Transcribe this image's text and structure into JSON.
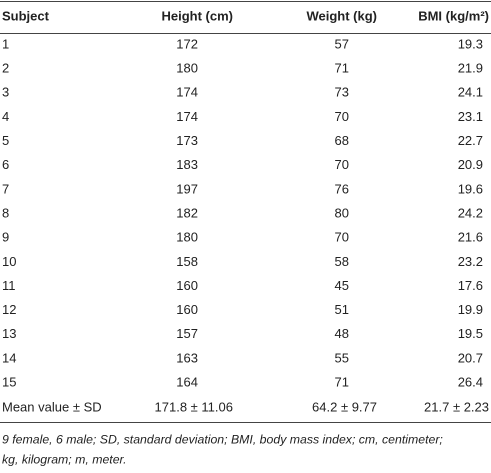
{
  "table": {
    "header": [
      "Subject",
      "Height (cm)",
      "Weight (kg)",
      "BMI (kg/m²)"
    ],
    "rows": [
      [
        1,
        172,
        57,
        19.3
      ],
      [
        2,
        180,
        71,
        21.9
      ],
      [
        3,
        174,
        73,
        24.1
      ],
      [
        4,
        174,
        70,
        23.1
      ],
      [
        5,
        173,
        68,
        22.7
      ],
      [
        6,
        183,
        70,
        20.9
      ],
      [
        7,
        197,
        76,
        19.6
      ],
      [
        8,
        182,
        80,
        24.2
      ],
      [
        9,
        180,
        70,
        21.6
      ],
      [
        10,
        158,
        58,
        23.2
      ],
      [
        11,
        160,
        45,
        17.6
      ],
      [
        12,
        160,
        51,
        19.9
      ],
      [
        13,
        157,
        48,
        19.5
      ],
      [
        14,
        163,
        55,
        20.7
      ],
      [
        15,
        164,
        71,
        26.4
      ]
    ],
    "summary": [
      "Mean value ± SD",
      "171.8 ± 11.06",
      "64.2 ± 9.77",
      "21.7 ± 2.23"
    ],
    "footnote": [
      "9 female, 6 male; SD, standard deviation; BMI, body mass index; cm, centimeter;",
      "kg, kilogram; m, meter."
    ]
  }
}
